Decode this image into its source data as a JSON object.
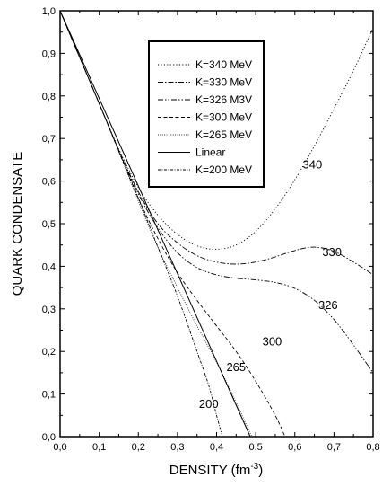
{
  "chart_data": {
    "type": "line",
    "xlabel": "DENSITY (fm",
    "xlabel_sup": "-3",
    "xlabel_close": ")",
    "ylabel": "QUARK CONDENSATE",
    "xlim": [
      0.0,
      0.8
    ],
    "ylim": [
      0.0,
      1.0
    ],
    "x_ticks": [
      "0,0",
      "0,1",
      "0,2",
      "0,3",
      "0,4",
      "0,5",
      "0,6",
      "0,7",
      "0,8"
    ],
    "y_ticks": [
      "0,0",
      "0,1",
      "0,2",
      "0,3",
      "0,4",
      "0,5",
      "0,6",
      "0,7",
      "0,8",
      "0,9",
      "1,0"
    ],
    "grid": false,
    "legend_position": "top-center",
    "series": [
      {
        "name": "K=340 MeV",
        "label": "340",
        "style": "dotted",
        "x": [
          0,
          0.05,
          0.1,
          0.15,
          0.2,
          0.25,
          0.3,
          0.35,
          0.4,
          0.45,
          0.5,
          0.55,
          0.6,
          0.65,
          0.7,
          0.75,
          0.8
        ],
        "y": [
          1.0,
          0.891,
          0.782,
          0.676,
          0.585,
          0.52,
          0.475,
          0.448,
          0.44,
          0.45,
          0.482,
          0.535,
          0.603,
          0.683,
          0.77,
          0.86,
          0.96
        ]
      },
      {
        "name": "K=330 MeV",
        "label": "330",
        "style": "dash-dot",
        "x": [
          0,
          0.05,
          0.1,
          0.15,
          0.2,
          0.25,
          0.3,
          0.35,
          0.4,
          0.45,
          0.5,
          0.55,
          0.6,
          0.65,
          0.7,
          0.75,
          0.8
        ],
        "y": [
          1.0,
          0.891,
          0.782,
          0.673,
          0.575,
          0.5,
          0.455,
          0.425,
          0.41,
          0.405,
          0.41,
          0.422,
          0.437,
          0.445,
          0.435,
          0.41,
          0.38
        ]
      },
      {
        "name": "K=326 M3V",
        "label": "326",
        "style": "dash-dot-dot",
        "x": [
          0,
          0.05,
          0.1,
          0.15,
          0.2,
          0.25,
          0.3,
          0.35,
          0.4,
          0.45,
          0.5,
          0.55,
          0.6,
          0.65,
          0.7,
          0.75,
          0.8
        ],
        "y": [
          1.0,
          0.891,
          0.782,
          0.672,
          0.57,
          0.49,
          0.432,
          0.397,
          0.38,
          0.372,
          0.368,
          0.362,
          0.348,
          0.32,
          0.275,
          0.215,
          0.15
        ]
      },
      {
        "name": "K=300 MeV",
        "label": "300",
        "style": "dashed",
        "x": [
          0,
          0.05,
          0.1,
          0.15,
          0.2,
          0.25,
          0.3,
          0.35,
          0.4,
          0.45,
          0.5,
          0.55,
          0.575
        ],
        "y": [
          1.0,
          0.891,
          0.782,
          0.67,
          0.56,
          0.465,
          0.385,
          0.32,
          0.26,
          0.2,
          0.13,
          0.05,
          0.0
        ]
      },
      {
        "name": "K=265 MeV",
        "label": "265",
        "style": "fine-dotted",
        "x": [
          0,
          0.05,
          0.1,
          0.15,
          0.2,
          0.25,
          0.3,
          0.35,
          0.4,
          0.45,
          0.475,
          0.49
        ],
        "y": [
          1.0,
          0.891,
          0.782,
          0.67,
          0.553,
          0.445,
          0.35,
          0.26,
          0.175,
          0.08,
          0.03,
          0.0
        ]
      },
      {
        "name": "Linear",
        "style": "solid",
        "x": [
          0,
          0.486
        ],
        "y": [
          1.0,
          0.0
        ]
      },
      {
        "name": "K=200 MeV",
        "label": "200",
        "style": "dash-dot-fine",
        "x": [
          0,
          0.05,
          0.1,
          0.15,
          0.2,
          0.25,
          0.3,
          0.35,
          0.38,
          0.4,
          0.415
        ],
        "y": [
          1.0,
          0.891,
          0.782,
          0.672,
          0.56,
          0.445,
          0.33,
          0.2,
          0.12,
          0.05,
          0.0
        ]
      }
    ]
  }
}
